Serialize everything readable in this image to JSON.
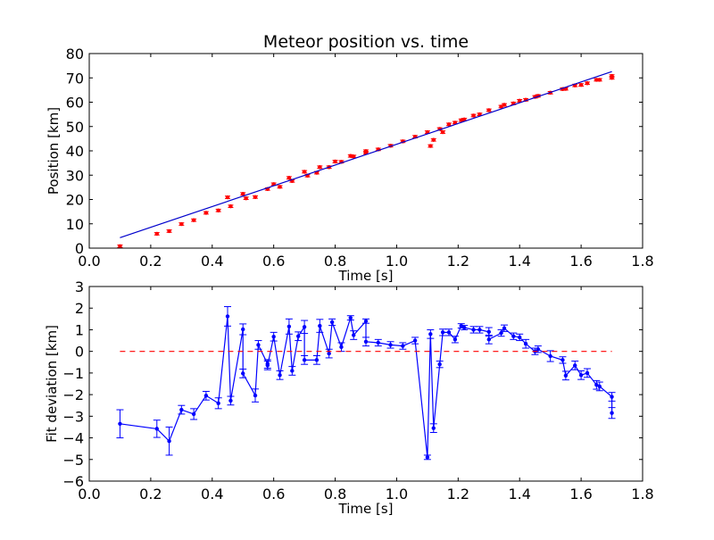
{
  "chart_data": [
    {
      "type": "scatter",
      "title": "Meteor position vs. time",
      "xlabel": "Time [s]",
      "ylabel": "Position [km]",
      "xlim": [
        0.0,
        1.8
      ],
      "ylim": [
        0,
        80
      ],
      "xticks": [
        "0.0",
        "0.2",
        "0.4",
        "0.6",
        "0.8",
        "1.0",
        "1.2",
        "1.4",
        "1.6",
        "1.8"
      ],
      "yticks": [
        "0",
        "10",
        "20",
        "30",
        "40",
        "50",
        "60",
        "70",
        "80"
      ],
      "grid": false,
      "series": [
        {
          "style": "errorbar-markers",
          "color": "#ff0000",
          "x": [
            0.1,
            0.22,
            0.26,
            0.3,
            0.34,
            0.38,
            0.42,
            0.45,
            0.46,
            0.5,
            0.51,
            0.54,
            0.58,
            0.6,
            0.62,
            0.65,
            0.66,
            0.7,
            0.71,
            0.74,
            0.75,
            0.78,
            0.8,
            0.82,
            0.85,
            0.86,
            0.9,
            0.9,
            0.94,
            0.98,
            1.02,
            1.06,
            1.1,
            1.11,
            1.12,
            1.14,
            1.15,
            1.17,
            1.19,
            1.21,
            1.22,
            1.25,
            1.27,
            1.3,
            1.34,
            1.35,
            1.38,
            1.4,
            1.42,
            1.45,
            1.46,
            1.5,
            1.54,
            1.55,
            1.58,
            1.6,
            1.62,
            1.65,
            1.66,
            1.7,
            1.7
          ],
          "y": [
            0.8,
            5.9,
            7.0,
            9.9,
            11.5,
            14.5,
            15.5,
            20.9,
            17.2,
            22.3,
            20.5,
            21.0,
            24.3,
            26.3,
            25.2,
            28.9,
            27.6,
            31.4,
            29.8,
            31.0,
            33.3,
            33.3,
            35.6,
            35.5,
            37.9,
            37.7,
            39.9,
            39.2,
            40.6,
            42.1,
            43.9,
            45.8,
            47.7,
            42.0,
            44.5,
            49.0,
            47.7,
            50.9,
            51.6,
            52.6,
            52.9,
            54.5,
            55.0,
            56.7,
            58.2,
            58.9,
            59.5,
            60.6,
            61.0,
            62.2,
            62.6,
            63.9,
            65.4,
            65.5,
            66.9,
            67.1,
            67.8,
            69.2,
            69.2,
            70.0,
            70.8
          ],
          "yerr": 0.5
        },
        {
          "style": "line",
          "color": "#0000cc",
          "x": [
            0.1,
            1.7
          ],
          "y": [
            4.3,
            72.6
          ]
        }
      ]
    },
    {
      "type": "line",
      "title": "",
      "xlabel": "Time [s]",
      "ylabel": "Fit deviation [km]",
      "xlim": [
        0.0,
        1.8
      ],
      "ylim": [
        -6,
        3
      ],
      "xticks": [
        "0.0",
        "0.2",
        "0.4",
        "0.6",
        "0.8",
        "1.0",
        "1.2",
        "1.4",
        "1.6",
        "1.8"
      ],
      "yticks": [
        "−6",
        "−5",
        "−4",
        "−3",
        "−2",
        "−1",
        "0",
        "1",
        "2",
        "3"
      ],
      "grid": false,
      "series": [
        {
          "style": "line-markers-errorbars",
          "color": "#0000ff",
          "x": [
            0.1,
            0.22,
            0.26,
            0.3,
            0.34,
            0.38,
            0.42,
            0.45,
            0.46,
            0.5,
            0.5,
            0.54,
            0.55,
            0.58,
            0.58,
            0.6,
            0.62,
            0.65,
            0.66,
            0.68,
            0.7,
            0.7,
            0.74,
            0.75,
            0.78,
            0.79,
            0.82,
            0.85,
            0.86,
            0.9,
            0.9,
            0.94,
            0.98,
            1.02,
            1.06,
            1.1,
            1.11,
            1.12,
            1.14,
            1.15,
            1.17,
            1.19,
            1.21,
            1.22,
            1.25,
            1.27,
            1.3,
            1.3,
            1.34,
            1.35,
            1.38,
            1.4,
            1.42,
            1.45,
            1.46,
            1.5,
            1.54,
            1.55,
            1.58,
            1.6,
            1.62,
            1.65,
            1.66,
            1.7,
            1.7
          ],
          "y": [
            -3.35,
            -3.58,
            -4.15,
            -2.7,
            -2.9,
            -2.05,
            -2.4,
            1.62,
            -2.28,
            1.02,
            -1.02,
            -2.04,
            0.3,
            -0.58,
            -0.65,
            0.68,
            -1.1,
            1.15,
            -0.9,
            0.7,
            1.13,
            -0.4,
            -0.4,
            1.18,
            -0.1,
            1.35,
            0.2,
            1.55,
            0.75,
            1.4,
            0.45,
            0.4,
            0.3,
            0.25,
            0.5,
            -4.9,
            0.8,
            -3.55,
            -0.6,
            0.88,
            0.88,
            0.55,
            1.18,
            1.1,
            1.0,
            1.0,
            0.9,
            0.55,
            0.85,
            1.07,
            0.7,
            0.65,
            0.35,
            0.0,
            0.1,
            -0.22,
            -0.4,
            -1.12,
            -0.65,
            -1.1,
            -1.0,
            -1.55,
            -1.62,
            -2.1,
            -2.85
          ],
          "yerr": [
            0.65,
            0.4,
            0.65,
            0.2,
            0.25,
            0.2,
            0.25,
            0.45,
            0.2,
            0.25,
            0.2,
            0.3,
            0.2,
            0.2,
            0.2,
            0.2,
            0.2,
            0.35,
            0.2,
            0.2,
            0.3,
            0.2,
            0.2,
            0.3,
            0.2,
            0.15,
            0.2,
            0.1,
            0.2,
            0.1,
            0.2,
            0.15,
            0.15,
            0.15,
            0.15,
            0.1,
            0.2,
            0.2,
            0.15,
            0.15,
            0.15,
            0.15,
            0.1,
            0.1,
            0.15,
            0.15,
            0.2,
            0.2,
            0.15,
            0.15,
            0.15,
            0.15,
            0.2,
            0.15,
            0.15,
            0.25,
            0.15,
            0.2,
            0.2,
            0.2,
            0.2,
            0.2,
            0.2,
            0.2,
            0.25
          ]
        },
        {
          "style": "dashed-line",
          "color": "#ff0000",
          "x": [
            0.1,
            1.7
          ],
          "y": [
            0,
            0
          ]
        }
      ]
    }
  ]
}
